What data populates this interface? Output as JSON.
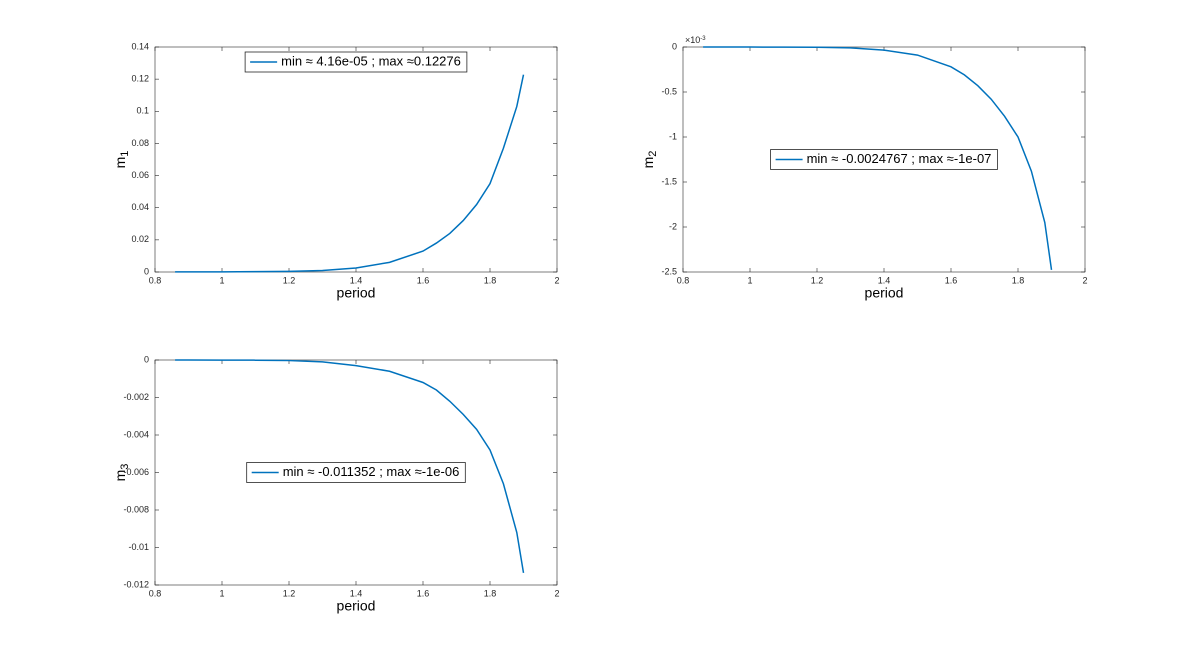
{
  "chart_data": [
    {
      "type": "line",
      "xlabel": "period",
      "ylabel": {
        "text": "m",
        "sub": "1"
      },
      "x": [
        0.86,
        0.9,
        1.0,
        1.1,
        1.2,
        1.3,
        1.4,
        1.5,
        1.6,
        1.64,
        1.68,
        1.72,
        1.76,
        1.8,
        1.84,
        1.88,
        1.9
      ],
      "series": [
        {
          "name": "min ≈ 4.16e-05 ; max ≈0.12276",
          "color": "#0072bd",
          "values": [
            4.16e-05,
            5e-05,
            0.0001,
            0.0002,
            0.0004,
            0.0009,
            0.0025,
            0.006,
            0.013,
            0.018,
            0.024,
            0.032,
            0.042,
            0.055,
            0.077,
            0.103,
            0.12276
          ]
        }
      ],
      "xlim": [
        0.8,
        2
      ],
      "xticks": [
        0.8,
        1,
        1.2,
        1.4,
        1.6,
        1.8,
        2
      ],
      "ylim": [
        0,
        0.14
      ],
      "yticks": [
        0,
        0.02,
        0.04,
        0.06,
        0.08,
        0.1,
        0.12,
        0.14
      ],
      "legend": "north"
    },
    {
      "type": "line",
      "xlabel": "period",
      "ylabel": {
        "text": "m",
        "sub": "2"
      },
      "y_exponent": {
        "base": "×10",
        "exp": "-3"
      },
      "x": [
        0.86,
        0.9,
        1.0,
        1.1,
        1.2,
        1.3,
        1.4,
        1.5,
        1.6,
        1.64,
        1.68,
        1.72,
        1.76,
        1.8,
        1.84,
        1.88,
        1.9
      ],
      "series": [
        {
          "name": "min ≈ -0.0024767 ; max ≈-1e-07",
          "color": "#0072bd",
          "values": [
            -0.0001,
            -0.0002,
            -0.0005,
            -0.0012,
            -0.003,
            -0.01,
            -0.035,
            -0.09,
            -0.22,
            -0.31,
            -0.43,
            -0.58,
            -0.77,
            -1.0,
            -1.38,
            -1.95,
            -2.4767
          ]
        }
      ],
      "xlim": [
        0.8,
        2
      ],
      "xticks": [
        0.8,
        1,
        1.2,
        1.4,
        1.6,
        1.8,
        2
      ],
      "ylim": [
        -2.5,
        0
      ],
      "yticks": [
        -2.5,
        -2,
        -1.5,
        -1,
        -0.5,
        0
      ],
      "legend": "center"
    },
    {
      "type": "line",
      "xlabel": "period",
      "ylabel": {
        "text": "m",
        "sub": "3"
      },
      "x": [
        0.86,
        0.9,
        1.0,
        1.1,
        1.2,
        1.3,
        1.4,
        1.5,
        1.6,
        1.64,
        1.68,
        1.72,
        1.76,
        1.8,
        1.84,
        1.88,
        1.9
      ],
      "series": [
        {
          "name": "min ≈ -0.011352 ; max ≈-1e-06",
          "color": "#0072bd",
          "values": [
            -1e-06,
            -2e-06,
            -5e-06,
            -1e-05,
            -3e-05,
            -0.0001,
            -0.0003,
            -0.0006,
            -0.0012,
            -0.0016,
            -0.0022,
            -0.0029,
            -0.0037,
            -0.0048,
            -0.0066,
            -0.0092,
            -0.011352
          ]
        }
      ],
      "xlim": [
        0.8,
        2
      ],
      "xticks": [
        0.8,
        1,
        1.2,
        1.4,
        1.6,
        1.8,
        2
      ],
      "ylim": [
        -0.012,
        0
      ],
      "yticks": [
        -0.012,
        -0.01,
        -0.008,
        -0.006,
        -0.004,
        -0.002,
        0
      ],
      "legend": "center"
    }
  ]
}
